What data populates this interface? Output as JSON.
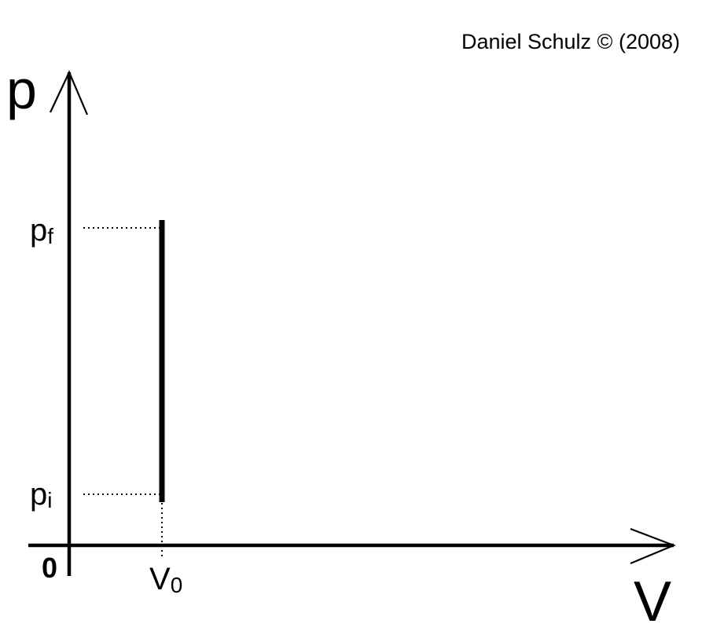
{
  "credit": "Daniel Schulz © (2008)",
  "axes": {
    "y_label": "p",
    "x_label": "V",
    "origin_label": "0"
  },
  "levels": {
    "p_final": {
      "symbol": "p",
      "subscript": "f"
    },
    "p_initial": {
      "symbol": "p",
      "subscript": "i"
    },
    "volume": {
      "symbol": "V",
      "subscript": "0"
    }
  },
  "colors": {
    "ink": "#000000",
    "background": "#ffffff"
  }
}
